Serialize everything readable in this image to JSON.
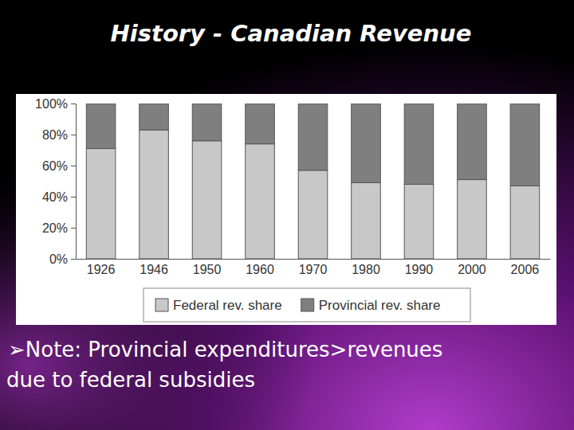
{
  "chart_data": {
    "type": "bar",
    "title": "History - Canadian Revenue",
    "stacked": true,
    "categories": [
      "1926",
      "1946",
      "1950",
      "1960",
      "1970",
      "1980",
      "1990",
      "2000",
      "2006"
    ],
    "series": [
      {
        "name": "Federal rev. share",
        "color": "#c8c8c8",
        "values": [
          71,
          83,
          76,
          74,
          57,
          49,
          48,
          51,
          47
        ]
      },
      {
        "name": "Provincial rev. share",
        "color": "#7f7f7f",
        "values": [
          29,
          17,
          24,
          26,
          43,
          51,
          52,
          49,
          53
        ]
      }
    ],
    "ylim": [
      0,
      100
    ],
    "yticks": [
      {
        "value": 0,
        "label": "0%"
      },
      {
        "value": 20,
        "label": "20%"
      },
      {
        "value": 40,
        "label": "40%"
      },
      {
        "value": 60,
        "label": "60%"
      },
      {
        "value": 80,
        "label": "80%"
      },
      {
        "value": 100,
        "label": "100%"
      }
    ],
    "grid": false,
    "legend": "bottom",
    "annotations": [
      "➢Note: Provincial expenditures>revenues",
      "due to federal subsidies"
    ]
  }
}
